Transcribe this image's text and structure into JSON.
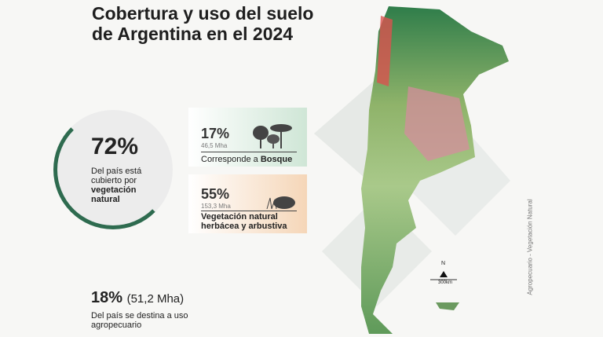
{
  "header": {
    "title_lines": [
      "Cobertura y uso del suelo",
      "de Argentina en el 2024"
    ]
  },
  "main_stat": {
    "value": "72%",
    "text": "Del país está cubierto por",
    "bold": "vegetación natural"
  },
  "cards": [
    {
      "value": "17%",
      "area": "46,5 Mha",
      "text": "Corresponde a",
      "bold": "Bosque"
    },
    {
      "value": "55%",
      "area": "153,3 Mha",
      "text": "Vegetación natural herbácea y arbustiva"
    }
  ],
  "bottom_stat": {
    "value": "18%",
    "area": "(51,2 Mha)",
    "text": "Del país se destina a uso agropecuario"
  },
  "map": {
    "north": "N",
    "scale": "300km",
    "legend": "Agropecuario - Vegetación Natural"
  }
}
